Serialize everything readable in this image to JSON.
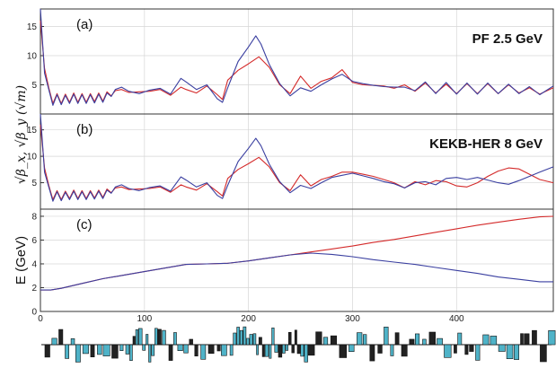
{
  "chart_data": [
    {
      "type": "line",
      "panel_label": "(a)",
      "title": "PF 2.5 GeV",
      "ylim": [
        0,
        18
      ],
      "yticks": [
        5,
        10,
        15
      ],
      "xlim": [
        0,
        493
      ],
      "series": [
        {
          "color": "#d42a2a",
          "x": [
            0,
            4,
            8,
            12,
            16,
            20,
            24,
            28,
            32,
            36,
            40,
            44,
            48,
            52,
            56,
            60,
            64,
            68,
            72,
            78,
            85,
            95,
            105,
            115,
            125,
            135,
            140,
            150,
            160,
            170,
            175,
            180,
            190,
            200,
            210,
            220,
            230,
            240,
            250,
            260,
            270,
            280,
            290,
            300,
            310,
            320,
            330,
            340,
            350,
            360,
            370,
            380,
            390,
            400,
            410,
            420,
            430,
            440,
            450,
            460,
            470,
            480,
            493
          ],
          "values": [
            16,
            7.8,
            4.5,
            1.8,
            3.5,
            1.8,
            3.4,
            2.0,
            3.6,
            2.0,
            3.5,
            2.0,
            3.5,
            2.1,
            3.6,
            2.2,
            3.8,
            3.1,
            4.0,
            4.2,
            3.7,
            3.8,
            3.9,
            4.2,
            3.2,
            4.6,
            4.2,
            3.6,
            4.8,
            3.3,
            2.5,
            5.8,
            7.5,
            8.6,
            9.8,
            8.0,
            5.0,
            3.5,
            6.5,
            4.4,
            5.6,
            6.2,
            7.6,
            5.4,
            5.0,
            4.9,
            4.8,
            4.4,
            5.0,
            3.9,
            5.3,
            3.6,
            5.1,
            3.5,
            5.2,
            3.5,
            5.2,
            3.5,
            5.0,
            3.6,
            4.5,
            3.4,
            4.5
          ]
        },
        {
          "color": "#3a3fa0",
          "x": [
            0,
            4,
            8,
            12,
            16,
            20,
            24,
            28,
            32,
            36,
            40,
            44,
            48,
            52,
            56,
            60,
            64,
            68,
            72,
            78,
            85,
            95,
            105,
            115,
            125,
            135,
            140,
            150,
            160,
            170,
            175,
            180,
            190,
            200,
            207,
            212,
            220,
            230,
            240,
            250,
            260,
            270,
            280,
            290,
            300,
            310,
            320,
            330,
            340,
            350,
            360,
            370,
            380,
            390,
            400,
            410,
            420,
            430,
            440,
            450,
            460,
            470,
            480,
            493
          ],
          "values": [
            18,
            7.0,
            4.2,
            1.5,
            3.3,
            1.6,
            3.2,
            1.8,
            3.4,
            1.8,
            3.3,
            1.8,
            3.3,
            1.9,
            3.4,
            2.0,
            3.6,
            3.0,
            4.2,
            4.6,
            3.9,
            3.5,
            4.1,
            4.4,
            3.4,
            6.1,
            5.5,
            4.2,
            5.0,
            2.6,
            2.0,
            4.5,
            9.0,
            11.5,
            13.4,
            12.0,
            8.5,
            5.2,
            3.1,
            4.5,
            3.9,
            5.0,
            6.0,
            6.8,
            5.6,
            5.2,
            4.9,
            4.7,
            4.6,
            4.6,
            4.0,
            5.5,
            3.5,
            5.4,
            3.4,
            5.3,
            3.4,
            5.3,
            3.5,
            5.1,
            3.5,
            4.7,
            3.3,
            4.8
          ]
        }
      ]
    },
    {
      "type": "line",
      "panel_label": "(b)",
      "title": "KEKB-HER 8 GeV",
      "ylim": [
        0,
        18
      ],
      "yticks": [
        5,
        10,
        15
      ],
      "xlim": [
        0,
        493
      ],
      "series": [
        {
          "color": "#d42a2a",
          "x": [
            0,
            4,
            8,
            12,
            16,
            20,
            24,
            28,
            32,
            36,
            40,
            44,
            48,
            52,
            56,
            60,
            64,
            68,
            72,
            78,
            85,
            95,
            105,
            115,
            125,
            135,
            140,
            150,
            160,
            170,
            175,
            180,
            190,
            200,
            210,
            220,
            230,
            240,
            250,
            260,
            270,
            280,
            290,
            300,
            310,
            320,
            330,
            340,
            350,
            360,
            370,
            380,
            390,
            400,
            410,
            420,
            430,
            440,
            450,
            460,
            470,
            480,
            493
          ],
          "values": [
            16,
            7.8,
            4.5,
            1.8,
            3.5,
            1.8,
            3.4,
            2.0,
            3.6,
            2.0,
            3.5,
            2.0,
            3.5,
            2.1,
            3.6,
            2.2,
            3.8,
            3.1,
            4.0,
            4.2,
            3.7,
            3.8,
            3.9,
            4.2,
            3.2,
            4.6,
            4.2,
            3.6,
            4.8,
            3.3,
            2.5,
            5.8,
            7.5,
            8.6,
            9.8,
            8.0,
            5.0,
            3.5,
            6.5,
            4.4,
            5.6,
            6.2,
            7.0,
            7.0,
            6.6,
            6.2,
            5.6,
            5.0,
            4.0,
            5.2,
            4.6,
            5.4,
            5.2,
            4.4,
            4.2,
            5.0,
            6.2,
            7.2,
            7.8,
            7.6,
            6.6,
            5.6,
            5.0
          ]
        },
        {
          "color": "#3a3fa0",
          "x": [
            0,
            4,
            8,
            12,
            16,
            20,
            24,
            28,
            32,
            36,
            40,
            44,
            48,
            52,
            56,
            60,
            64,
            68,
            72,
            78,
            85,
            95,
            105,
            115,
            125,
            135,
            140,
            150,
            160,
            170,
            175,
            180,
            190,
            200,
            207,
            212,
            220,
            230,
            240,
            250,
            260,
            270,
            280,
            290,
            300,
            310,
            320,
            330,
            340,
            350,
            360,
            370,
            380,
            390,
            400,
            410,
            420,
            430,
            440,
            450,
            460,
            470,
            480,
            493
          ],
          "values": [
            18,
            7.0,
            4.2,
            1.5,
            3.3,
            1.6,
            3.2,
            1.8,
            3.4,
            1.8,
            3.3,
            1.8,
            3.3,
            1.9,
            3.4,
            2.0,
            3.6,
            3.0,
            4.2,
            4.6,
            3.9,
            3.5,
            4.1,
            4.4,
            3.4,
            6.1,
            5.5,
            4.2,
            5.0,
            2.6,
            2.0,
            4.5,
            9.0,
            11.5,
            13.4,
            12.0,
            8.5,
            5.2,
            3.1,
            4.5,
            3.9,
            5.0,
            6.0,
            6.4,
            6.8,
            6.3,
            5.8,
            5.2,
            4.8,
            4.0,
            5.0,
            5.2,
            4.6,
            5.8,
            6.0,
            5.6,
            6.0,
            5.5,
            5.0,
            4.7,
            5.4,
            6.2,
            7.0,
            8.0
          ]
        }
      ]
    },
    {
      "type": "line",
      "panel_label": "(c)",
      "ylabel": "E (GeV)",
      "ylim": [
        0,
        8.6
      ],
      "yticks": [
        0,
        2,
        4,
        6,
        8
      ],
      "xlim": [
        0,
        493
      ],
      "xticks": [
        0,
        100,
        200,
        300,
        400
      ],
      "series": [
        {
          "color": "#d42a2a",
          "x": [
            0,
            10,
            20,
            40,
            60,
            80,
            100,
            120,
            140,
            160,
            180,
            200,
            220,
            240,
            260,
            280,
            300,
            320,
            340,
            360,
            380,
            400,
            420,
            440,
            460,
            480,
            493
          ],
          "values": [
            1.8,
            1.8,
            1.95,
            2.35,
            2.75,
            3.05,
            3.35,
            3.65,
            3.95,
            4.0,
            4.05,
            4.25,
            4.5,
            4.75,
            5.0,
            5.25,
            5.5,
            5.8,
            6.05,
            6.35,
            6.65,
            6.95,
            7.25,
            7.5,
            7.75,
            7.95,
            8.0
          ]
        },
        {
          "color": "#3a3fa0",
          "x": [
            0,
            10,
            20,
            40,
            60,
            80,
            100,
            120,
            140,
            160,
            180,
            200,
            220,
            240,
            260,
            280,
            300,
            320,
            340,
            360,
            380,
            400,
            420,
            440,
            460,
            480,
            493
          ],
          "values": [
            1.8,
            1.8,
            1.95,
            2.35,
            2.75,
            3.05,
            3.35,
            3.65,
            3.95,
            4.0,
            4.05,
            4.25,
            4.5,
            4.75,
            4.9,
            4.8,
            4.6,
            4.35,
            4.15,
            3.95,
            3.7,
            3.45,
            3.2,
            2.9,
            2.7,
            2.5,
            2.5
          ]
        }
      ]
    }
  ],
  "ylabel_top": "√β_x, √β_y (√m)",
  "magnet_strip": {
    "fill_color": "#4fb3c8",
    "edge_color": "#111111"
  }
}
